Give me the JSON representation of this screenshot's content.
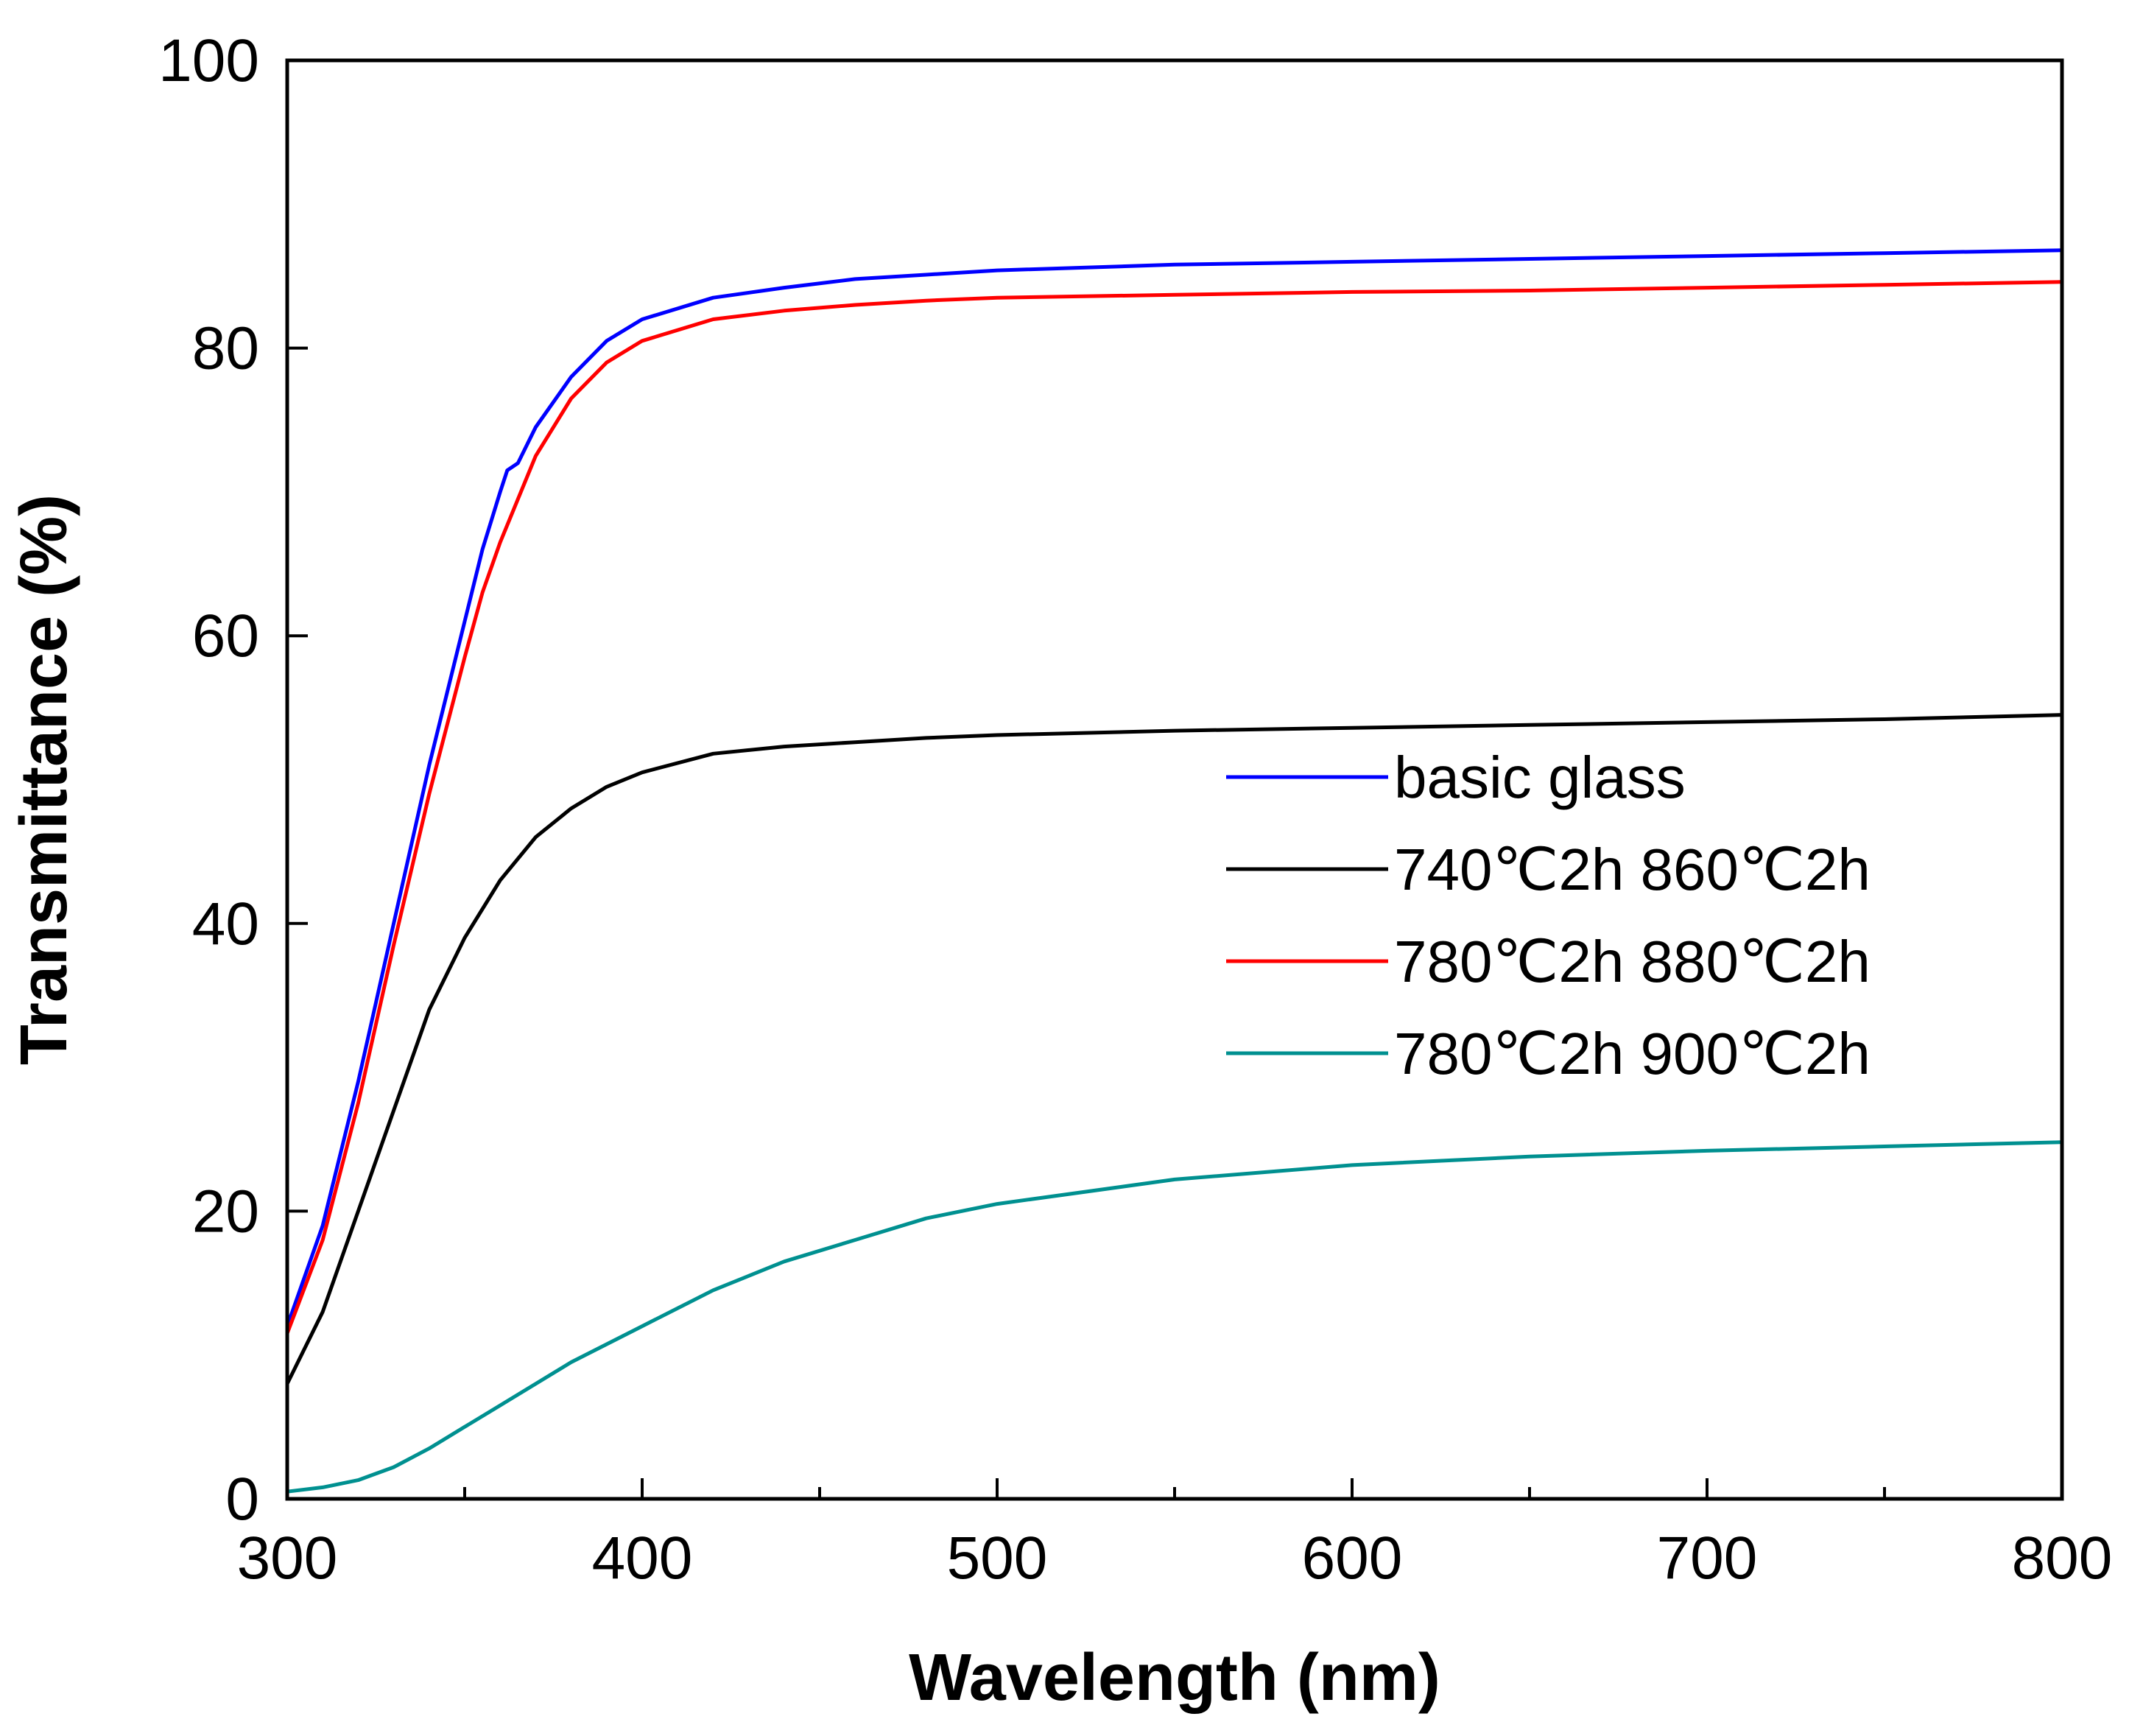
{
  "chart_data": {
    "type": "line",
    "title": "",
    "xlabel": "Wavelength (nm)",
    "ylabel": "Transmittance (%)",
    "xlim": [
      300,
      800
    ],
    "ylim": [
      0,
      100
    ],
    "xticks": [
      300,
      400,
      500,
      600,
      700,
      800
    ],
    "yticks": [
      0,
      20,
      40,
      60,
      80,
      100
    ],
    "xtick_labels": [
      "300",
      "400",
      "500",
      "600",
      "700",
      "800"
    ],
    "ytick_labels": [
      "0",
      "20",
      "40",
      "60",
      "80",
      "100"
    ],
    "grid": false,
    "legend_position": "center-right",
    "series": [
      {
        "name": "basic glass",
        "color": "#0000ff",
        "x": [
          300,
          310,
          320,
          330,
          340,
          350,
          355,
          360,
          362,
          365,
          370,
          380,
          390,
          400,
          420,
          440,
          460,
          480,
          500,
          550,
          600,
          650,
          700,
          750,
          800
        ],
        "y": [
          12,
          19,
          29,
          40,
          51,
          61,
          66,
          70,
          71.5,
          72,
          74.5,
          78,
          80.5,
          82,
          83.5,
          84.2,
          84.8,
          85.1,
          85.4,
          85.8,
          86.0,
          86.2,
          86.4,
          86.6,
          86.8
        ]
      },
      {
        "name": "740℃2h 860℃2h",
        "color": "#000000",
        "x": [
          300,
          310,
          320,
          330,
          340,
          350,
          360,
          370,
          380,
          390,
          400,
          420,
          440,
          460,
          480,
          500,
          550,
          600,
          650,
          700,
          750,
          800
        ],
        "y": [
          8,
          13,
          20,
          27,
          34,
          39,
          43,
          46,
          48,
          49.5,
          50.5,
          51.8,
          52.3,
          52.6,
          52.9,
          53.1,
          53.4,
          53.6,
          53.8,
          54.0,
          54.2,
          54.5
        ]
      },
      {
        "name": "780℃2h 880℃2h",
        "color": "#ff0000",
        "x": [
          300,
          310,
          320,
          330,
          340,
          350,
          355,
          360,
          365,
          370,
          380,
          390,
          400,
          420,
          440,
          460,
          480,
          500,
          550,
          600,
          650,
          700,
          750,
          800
        ],
        "y": [
          11.5,
          18,
          27.5,
          38.5,
          49,
          58.5,
          63,
          66.5,
          69.5,
          72.5,
          76.5,
          79,
          80.5,
          82,
          82.6,
          83,
          83.3,
          83.5,
          83.7,
          83.9,
          84.0,
          84.2,
          84.4,
          84.6
        ]
      },
      {
        "name": "780℃2h 900℃2h",
        "color": "#009090",
        "x": [
          300,
          310,
          320,
          330,
          340,
          350,
          360,
          380,
          400,
          420,
          440,
          460,
          480,
          500,
          550,
          600,
          650,
          700,
          750,
          800
        ],
        "y": [
          0.5,
          0.8,
          1.3,
          2.2,
          3.5,
          5,
          6.5,
          9.5,
          12,
          14.5,
          16.5,
          18,
          19.5,
          20.5,
          22.2,
          23.2,
          23.8,
          24.2,
          24.5,
          24.8
        ]
      }
    ]
  }
}
